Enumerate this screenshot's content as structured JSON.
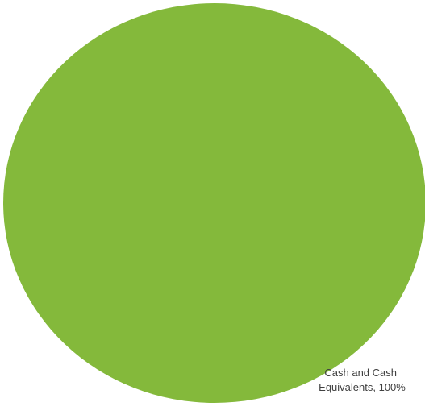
{
  "chart_data": {
    "type": "pie",
    "title": "",
    "slices": [
      {
        "label": "Cash and Cash Equivalents",
        "value": 100,
        "value_label": "100%",
        "label_lines": [
          "Cash and Cash",
          "Equivalents, 100%"
        ],
        "color": "#84b93b"
      }
    ],
    "legend": "none",
    "data_label_position": "bottom-right"
  }
}
